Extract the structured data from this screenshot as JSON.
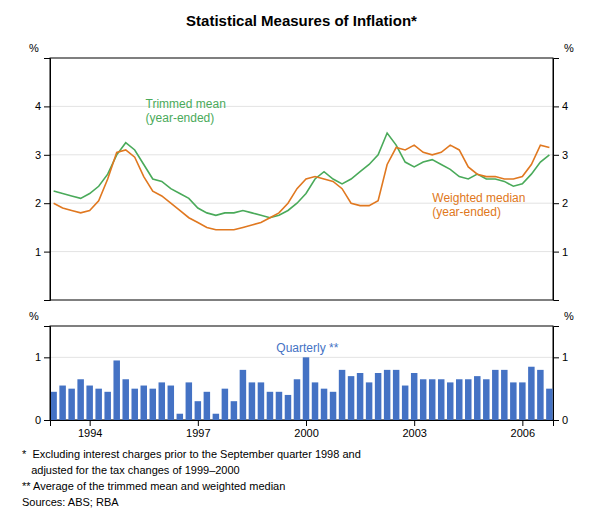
{
  "chart_data": [
    {
      "type": "line",
      "title": "Statistical Measures of Inflation*",
      "ylabel": "%",
      "y2label": "%",
      "x": [
        1993,
        1993.25,
        1993.5,
        1993.75,
        1994,
        1994.25,
        1994.5,
        1994.75,
        1995,
        1995.25,
        1995.5,
        1995.75,
        1996,
        1996.25,
        1996.5,
        1996.75,
        1997,
        1997.25,
        1997.5,
        1997.75,
        1998,
        1998.25,
        1998.5,
        1998.75,
        1999,
        1999.25,
        1999.5,
        1999.75,
        2000,
        2000.25,
        2000.5,
        2000.75,
        2001,
        2001.25,
        2001.5,
        2001.75,
        2002,
        2002.25,
        2002.5,
        2002.75,
        2003,
        2003.25,
        2003.5,
        2003.75,
        2004,
        2004.25,
        2004.5,
        2004.75,
        2005,
        2005.25,
        2005.5,
        2005.75,
        2006,
        2006.25,
        2006.5,
        2006.75
      ],
      "series": [
        {
          "name": "Trimmed mean\n(year-ended)",
          "color": "#4aaa5a",
          "values": [
            2.25,
            2.2,
            2.15,
            2.1,
            2.2,
            2.35,
            2.6,
            3.0,
            3.25,
            3.1,
            2.8,
            2.5,
            2.45,
            2.3,
            2.2,
            2.1,
            1.9,
            1.8,
            1.75,
            1.8,
            1.8,
            1.85,
            1.8,
            1.75,
            1.7,
            1.75,
            1.85,
            2.0,
            2.2,
            2.5,
            2.65,
            2.5,
            2.4,
            2.5,
            2.65,
            2.8,
            3.0,
            3.45,
            3.2,
            2.85,
            2.75,
            2.85,
            2.9,
            2.8,
            2.7,
            2.55,
            2.5,
            2.6,
            2.5,
            2.5,
            2.45,
            2.35,
            2.4,
            2.6,
            2.85,
            3.0
          ]
        },
        {
          "name": "Weighted median\n(year-ended)",
          "color": "#e07820",
          "values": [
            2.0,
            1.9,
            1.85,
            1.8,
            1.85,
            2.05,
            2.5,
            3.05,
            3.1,
            2.95,
            2.55,
            2.25,
            2.15,
            2.0,
            1.85,
            1.7,
            1.6,
            1.5,
            1.45,
            1.45,
            1.45,
            1.5,
            1.55,
            1.6,
            1.7,
            1.8,
            2.0,
            2.3,
            2.5,
            2.55,
            2.5,
            2.45,
            2.3,
            2.0,
            1.95,
            1.95,
            2.05,
            2.8,
            3.15,
            3.1,
            3.2,
            3.05,
            3.0,
            3.05,
            3.2,
            3.1,
            2.75,
            2.6,
            2.55,
            2.55,
            2.5,
            2.5,
            2.55,
            2.8,
            3.2,
            3.15
          ]
        }
      ],
      "xlim": [
        1992.9,
        2006.85
      ],
      "ylim": [
        0,
        5
      ],
      "yticks": [
        1,
        2,
        3,
        4
      ],
      "y2lim": [
        0,
        5
      ],
      "y2ticks": [
        1,
        2,
        3,
        4
      ],
      "grid": true,
      "tick_labels": "y"
    },
    {
      "type": "bar",
      "ylabel": "%",
      "y2label": "%",
      "x": [
        1993,
        1993.25,
        1993.5,
        1993.75,
        1994,
        1994.25,
        1994.5,
        1994.75,
        1995,
        1995.25,
        1995.5,
        1995.75,
        1996,
        1996.25,
        1996.5,
        1996.75,
        1997,
        1997.25,
        1997.5,
        1997.75,
        1998,
        1998.25,
        1998.5,
        1998.75,
        1999,
        1999.25,
        1999.5,
        1999.75,
        2000,
        2000.25,
        2000.5,
        2000.75,
        2001,
        2001.25,
        2001.5,
        2001.75,
        2002,
        2002.25,
        2002.5,
        2002.75,
        2003,
        2003.25,
        2003.5,
        2003.75,
        2004,
        2004.25,
        2004.5,
        2004.75,
        2005,
        2005.25,
        2005.5,
        2005.75,
        2006,
        2006.25,
        2006.5,
        2006.75
      ],
      "series": [
        {
          "name": "Quarterly **",
          "color": "#4472c4",
          "values": [
            0.45,
            0.55,
            0.5,
            0.65,
            0.55,
            0.5,
            0.45,
            0.95,
            0.65,
            0.5,
            0.55,
            0.5,
            0.6,
            0.55,
            0.1,
            0.6,
            0.3,
            0.45,
            0.1,
            0.5,
            0.3,
            0.8,
            0.6,
            0.6,
            0.45,
            0.45,
            0.4,
            0.65,
            1.0,
            0.6,
            0.5,
            0.45,
            0.8,
            0.7,
            0.75,
            0.6,
            0.75,
            0.8,
            0.8,
            0.55,
            0.75,
            0.65,
            0.65,
            0.65,
            0.6,
            0.65,
            0.65,
            0.7,
            0.65,
            0.8,
            0.8,
            0.6,
            0.6,
            0.85,
            0.8,
            0.5
          ]
        }
      ],
      "xlim": [
        1992.9,
        2006.85
      ],
      "xticks": [
        1994,
        1997,
        2000,
        2003,
        2006
      ],
      "ylim": [
        0,
        1.5
      ],
      "yticks": [
        0,
        1
      ],
      "y2lim": [
        0,
        1.5
      ],
      "y2ticks": [
        0,
        1
      ],
      "grid": true,
      "footnotes": [
        "*  Excluding interest charges prior to the September quarter 1998 and",
        "   adjusted for the tax changes of 1999–2000",
        "** Average of the trimmed mean and weighted median",
        "Sources: ABS; RBA"
      ]
    }
  ]
}
